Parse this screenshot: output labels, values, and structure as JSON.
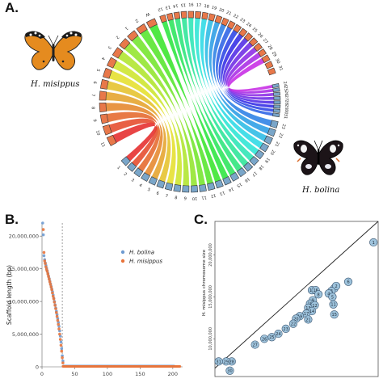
{
  "panels": {
    "a": {
      "letter": "A.",
      "species_left": "H. misippus",
      "species_right": "H. bolina",
      "colors": {
        "misippus": "#e8784a",
        "bolina": "#7aa6c9"
      },
      "top_labels": [
        "12",
        "13",
        "14",
        "15",
        "16",
        "17",
        "18",
        "19",
        "20",
        "21",
        "22",
        "23",
        "24",
        "25",
        "26",
        "27",
        "28",
        "29",
        "30",
        "31"
      ],
      "left_labels": [
        "11",
        "10",
        "9",
        "8",
        "7",
        "6",
        "5",
        "4",
        "3",
        "2",
        "1",
        "Z",
        "W"
      ],
      "bottom_labels": [
        "1",
        "2",
        "3",
        "4",
        "5",
        "6",
        "7",
        "8",
        "9",
        "10",
        "11",
        "12",
        "13",
        "14",
        "15",
        "16",
        "17",
        "18",
        "19",
        "20",
        "21",
        "22",
        "23"
      ],
      "right_labels": [
        "31",
        "30",
        "29",
        "28",
        "27",
        "26",
        "25",
        "24"
      ]
    },
    "b": {
      "letter": "B.",
      "chart_data": {
        "type": "scatter",
        "ylabel": "Scaffold length (bp)",
        "xlabel": "",
        "ylim": [
          0,
          22000000
        ],
        "xlim": [
          0,
          215
        ],
        "y_ticks": [
          "0",
          "5,000,000",
          "10,000,000",
          "15,000,000",
          "20,000,000"
        ],
        "y_tick_values": [
          0,
          5000000,
          10000000,
          15000000,
          20000000
        ],
        "x_ticks": [
          "0",
          "50",
          "100",
          "150",
          "200"
        ],
        "x_tick_values": [
          0,
          50,
          100,
          150,
          200
        ],
        "cutoff_x": 31,
        "legend_position": "top-right",
        "series": [
          {
            "name": "H. bolina",
            "color": "#6e9bd1",
            "head": [
              22000000,
              20200000,
              17000000,
              16400000,
              15900000,
              15500000,
              15100000,
              14700000,
              14300000,
              13900000,
              13500000,
              13100000,
              12700000,
              12300000,
              11900000,
              11500000,
              11000000,
              10500000,
              10000000,
              9500000,
              9000000,
              8500000,
              8000000,
              7400000,
              6800000,
              6200000,
              5500000,
              4700000,
              3800000,
              2800000,
              1700000,
              900000
            ],
            "tail_count": 170,
            "tail_value": 120000
          },
          {
            "name": "H. misippus",
            "color": "#e8743b",
            "head": [
              21000000,
              17500000,
              16200000,
              15800000,
              15300000,
              14900000,
              14600000,
              14200000,
              13800000,
              13400000,
              13000000,
              12600000,
              12200000,
              11800000,
              11300000,
              10800000,
              10400000,
              9900000,
              9400000,
              8900000,
              8300000,
              7700000,
              7100000,
              6500000,
              5800000,
              5000000,
              4200000,
              3300000,
              2400000,
              1400000,
              600000
            ],
            "tail_count": 180,
            "tail_value": 60000
          }
        ]
      }
    },
    "c": {
      "letter": "C.",
      "chart_data": {
        "type": "scatter",
        "ylabel": "H. misippus chromosome size",
        "y_ticks": [
          "10,000,000",
          "15,000,000",
          "20,000,000"
        ],
        "y_tick_values": [
          10000000,
          15000000,
          20000000
        ],
        "xlim": [
          6500000,
          24000000
        ],
        "ylim": [
          5500000,
          24000000
        ],
        "points": [
          {
            "label": "1",
            "x": 23500000,
            "y": 21500000
          },
          {
            "label": "6",
            "x": 20800000,
            "y": 16800000
          },
          {
            "label": "7",
            "x": 19300000,
            "y": 16000000
          },
          {
            "label": "2",
            "x": 19500000,
            "y": 16300000
          },
          {
            "label": "3",
            "x": 19000000,
            "y": 15700000
          },
          {
            "label": "4",
            "x": 18700000,
            "y": 15400000
          },
          {
            "label": "5",
            "x": 19100000,
            "y": 15000000
          },
          {
            "label": "11",
            "x": 19200000,
            "y": 14100000
          },
          {
            "label": "15",
            "x": 19300000,
            "y": 12900000
          },
          {
            "label": "18",
            "x": 16900000,
            "y": 15800000
          },
          {
            "label": "16",
            "x": 17300000,
            "y": 15800000
          },
          {
            "label": "8",
            "x": 17600000,
            "y": 15300000
          },
          {
            "label": "9",
            "x": 17000000,
            "y": 14600000
          },
          {
            "label": "10",
            "x": 16700000,
            "y": 14200000
          },
          {
            "label": "12",
            "x": 17200000,
            "y": 14000000
          },
          {
            "label": "13",
            "x": 16500000,
            "y": 13700000
          },
          {
            "label": "14",
            "x": 16900000,
            "y": 13300000
          },
          {
            "label": "17",
            "x": 16300000,
            "y": 13000000
          },
          {
            "label": "19",
            "x": 15600000,
            "y": 12700000
          },
          {
            "label": "20",
            "x": 15200000,
            "y": 12400000
          },
          {
            "label": "21",
            "x": 16500000,
            "y": 12300000
          },
          {
            "label": "22",
            "x": 14900000,
            "y": 11800000
          },
          {
            "label": "23",
            "x": 14100000,
            "y": 11200000
          },
          {
            "label": "24",
            "x": 13300000,
            "y": 10600000
          },
          {
            "label": "25",
            "x": 12600000,
            "y": 10200000
          },
          {
            "label": "26",
            "x": 11800000,
            "y": 10000000
          },
          {
            "label": "27",
            "x": 10800000,
            "y": 9300000
          },
          {
            "label": "28",
            "x": 8300000,
            "y": 7300000
          },
          {
            "label": "29",
            "x": 7700000,
            "y": 7300000
          },
          {
            "label": "30",
            "x": 8100000,
            "y": 6200000
          },
          {
            "label": "31",
            "x": 6900000,
            "y": 7300000
          }
        ],
        "point_color": "#9ec3dc",
        "diagonal": true
      }
    }
  }
}
